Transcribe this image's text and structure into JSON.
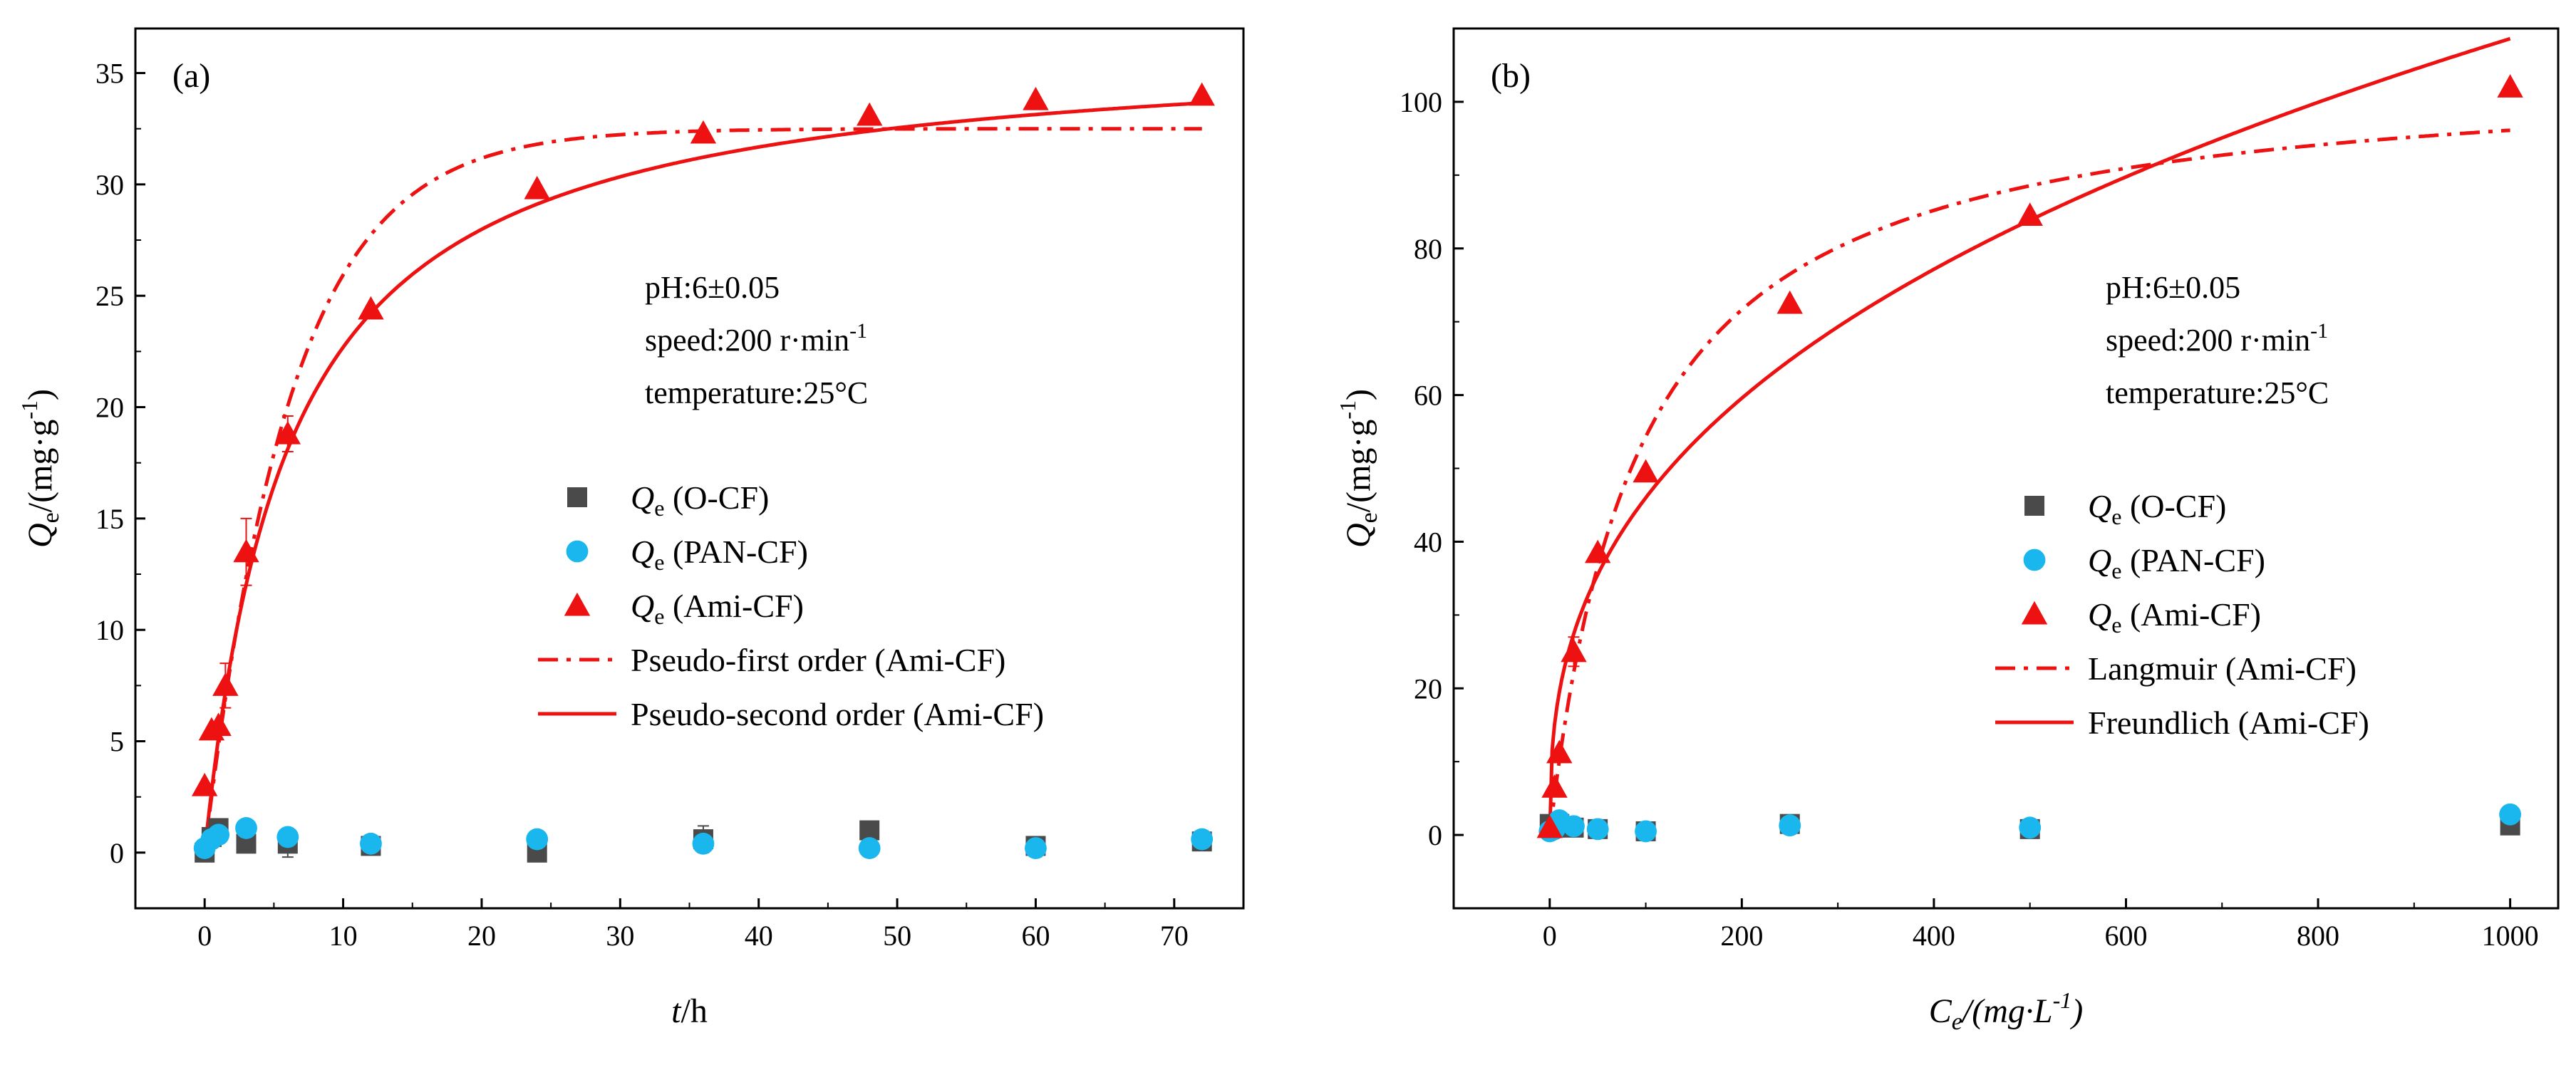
{
  "chart_data": [
    {
      "panel_label": "(a)",
      "type": "scatter",
      "xlabel": {
        "italic": "t",
        "rest": "/h"
      },
      "ylabel": {
        "italic": "Q",
        "sub": "e",
        "pre": "/(mg·g",
        "sup": "-1",
        "post": ")"
      },
      "xlim": [
        -5,
        75
      ],
      "ylim": [
        -2.5,
        37
      ],
      "xticks": [
        "0",
        "10",
        "20",
        "30",
        "40",
        "50",
        "60",
        "70"
      ],
      "xtick_values": [
        0,
        10,
        20,
        30,
        40,
        50,
        60,
        70
      ],
      "yticks": [
        "0",
        "5",
        "10",
        "15",
        "20",
        "25",
        "30",
        "35"
      ],
      "ytick_values": [
        0,
        5,
        10,
        15,
        20,
        25,
        30,
        35
      ],
      "annotations": {
        "line1": "pH:6±0.05",
        "line2_pre": "speed:200 r·min",
        "line2_sup": "-1",
        "line3": "temperature:25°C"
      },
      "legend": [
        {
          "q": "Q",
          "sub": "e",
          "text": " (O-CF)",
          "marker": "square",
          "color": "#4a4a4a"
        },
        {
          "q": "Q",
          "sub": "e",
          "text": " (PAN-CF)",
          "marker": "circle",
          "color": "#1ab6ee"
        },
        {
          "q": "Q",
          "sub": "e",
          "text": " (Ami-CF)",
          "marker": "triangle",
          "color": "#ee1111"
        },
        {
          "q": "",
          "sub": "",
          "text": "Pseudo-first order    (Ami-CF)",
          "marker": "dashdot",
          "color": "#ee1111"
        },
        {
          "q": "",
          "sub": "",
          "text": "Pseudo-second order (Ami-CF)",
          "marker": "solid",
          "color": "#ee1111"
        }
      ],
      "series": [
        {
          "name": "Qe (O-CF)",
          "marker": "square",
          "color": "#4a4a4a",
          "x": [
            0,
            0.5,
            1,
            3,
            6,
            12,
            24,
            36,
            48,
            60,
            72
          ],
          "y": [
            0,
            0.7,
            1.1,
            0.4,
            0.4,
            0.3,
            0.0,
            0.6,
            1.0,
            0.3,
            0.5
          ],
          "err": [
            0,
            0,
            0,
            0,
            0.6,
            0,
            0,
            0.6,
            0,
            0,
            0
          ]
        },
        {
          "name": "Qe (PAN-CF)",
          "marker": "circle",
          "color": "#1ab6ee",
          "x": [
            0,
            0.5,
            1,
            3,
            6,
            12,
            24,
            36,
            48,
            60,
            72
          ],
          "y": [
            0.2,
            0.6,
            0.8,
            1.1,
            0.7,
            0.4,
            0.6,
            0.4,
            0.2,
            0.2,
            0.6
          ],
          "err": [
            0,
            0,
            0,
            0,
            0.4,
            0,
            0,
            0,
            0,
            0,
            0
          ]
        },
        {
          "name": "Qe (Ami-CF)",
          "marker": "triangle",
          "color": "#ee1111",
          "x": [
            0,
            0.5,
            1,
            1.5,
            3,
            6,
            12,
            24,
            36,
            48,
            60,
            72
          ],
          "y": [
            3.0,
            5.5,
            5.7,
            7.5,
            13.5,
            18.8,
            24.4,
            29.8,
            32.3,
            33.1,
            33.8,
            34.0
          ],
          "err": [
            0,
            0,
            0,
            1.0,
            1.5,
            0.8,
            0,
            0,
            0,
            0,
            0,
            0
          ]
        }
      ],
      "fits": [
        {
          "name": "Pseudo-first order (Ami-CF)",
          "style": "dashdot",
          "model": "pfo",
          "qe": 32.5,
          "k": 0.16,
          "xmax": 72
        },
        {
          "name": "Pseudo-second order (Ami-CF)",
          "style": "solid",
          "model": "pso",
          "qe": 36.5,
          "k": 0.0045,
          "xmax": 72
        }
      ]
    },
    {
      "panel_label": "(b)",
      "type": "scatter",
      "xlabel": {
        "italic": "C",
        "sub": "e",
        "pre": "/(mg·L",
        "sup": "-1",
        "post": ")"
      },
      "ylabel": {
        "italic": "Q",
        "sub": "e",
        "pre": "/(mg·g",
        "sup": "-1",
        "post": ")"
      },
      "xlim": [
        -100,
        1050
      ],
      "ylim": [
        -10,
        110
      ],
      "xticks": [
        "0",
        "200",
        "400",
        "600",
        "800",
        "1000"
      ],
      "xtick_values": [
        0,
        200,
        400,
        600,
        800,
        1000
      ],
      "yticks": [
        "0",
        "20",
        "40",
        "60",
        "80",
        "100"
      ],
      "ytick_values": [
        0,
        20,
        40,
        60,
        80,
        100
      ],
      "annotations": {
        "line1": "pH:6±0.05",
        "line2_pre": "speed:200 r·min",
        "line2_sup": "-1",
        "line3": "temperature:25°C"
      },
      "legend": [
        {
          "q": "Q",
          "sub": "e",
          "text": " (O-CF)",
          "marker": "square",
          "color": "#4a4a4a"
        },
        {
          "q": "Q",
          "sub": "e",
          "text": " (PAN-CF)",
          "marker": "circle",
          "color": "#1ab6ee"
        },
        {
          "q": "Q",
          "sub": "e",
          "text": " (Ami-CF)",
          "marker": "triangle",
          "color": "#ee1111"
        },
        {
          "q": "",
          "sub": "",
          "text": "Langmuir  (Ami-CF)",
          "marker": "dashdot",
          "color": "#ee1111"
        },
        {
          "q": "",
          "sub": "",
          "text": "Freundlich (Ami-CF)",
          "marker": "solid",
          "color": "#ee1111"
        }
      ],
      "series": [
        {
          "name": "Qe (O-CF)",
          "marker": "square",
          "color": "#4a4a4a",
          "x": [
            0,
            5,
            10,
            25,
            50,
            100,
            250,
            500,
            1000
          ],
          "y": [
            1.5,
            1.0,
            1.5,
            1.0,
            0.8,
            0.5,
            1.5,
            0.8,
            1.3
          ],
          "err": [
            0,
            0,
            0,
            0,
            0,
            0,
            0,
            0,
            0
          ]
        },
        {
          "name": "Qe (PAN-CF)",
          "marker": "circle",
          "color": "#1ab6ee",
          "x": [
            0,
            5,
            10,
            25,
            50,
            100,
            250,
            500,
            1000
          ],
          "y": [
            0.5,
            0.8,
            2.0,
            1.2,
            0.8,
            0.5,
            1.3,
            1.0,
            2.8
          ],
          "err": [
            0,
            0,
            0,
            0,
            0,
            0,
            0,
            0,
            0
          ]
        },
        {
          "name": "Qe (Ami-CF)",
          "marker": "triangle",
          "color": "#ee1111",
          "x": [
            0,
            5,
            10,
            25,
            50,
            100,
            250,
            500,
            1000
          ],
          "y": [
            1.0,
            6.5,
            11.2,
            25.0,
            38.5,
            49.5,
            72.5,
            84.5,
            102.0
          ],
          "err": [
            0,
            0,
            0,
            2.0,
            0,
            0,
            0,
            0,
            0
          ]
        }
      ],
      "fits": [
        {
          "name": "Langmuir (Ami-CF)",
          "style": "dashdot",
          "model": "langmuir",
          "qm": 105.1,
          "k": 0.0107,
          "xmax": 1000
        },
        {
          "name": "Freundlich (Ami-CF)",
          "style": "solid",
          "model": "freundlich",
          "kf": 8.25,
          "n": 2.68,
          "xmax": 1000
        }
      ]
    }
  ]
}
